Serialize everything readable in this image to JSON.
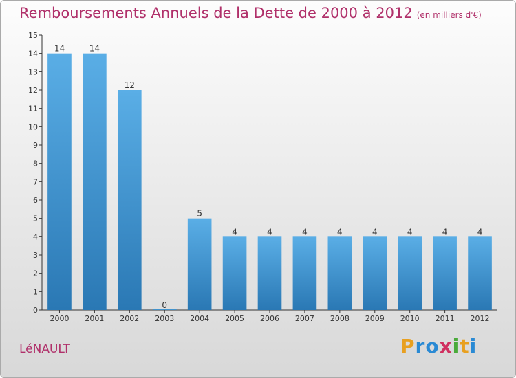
{
  "chart_data": {
    "type": "bar",
    "title": "Remboursements Annuels de la Dette de 2000 à 2012",
    "subtitle": "(en milliers d'€)",
    "categories": [
      "2000",
      "2001",
      "2002",
      "2003",
      "2004",
      "2005",
      "2006",
      "2007",
      "2008",
      "2009",
      "2010",
      "2011",
      "2012"
    ],
    "values": [
      14,
      14,
      12,
      0,
      5,
      4,
      4,
      4,
      4,
      4,
      4,
      4,
      4
    ],
    "ylim": [
      0,
      15
    ],
    "yticks": [
      0,
      1,
      2,
      3,
      4,
      5,
      6,
      7,
      8,
      9,
      10,
      11,
      12,
      13,
      14,
      15
    ],
    "xlabel": "",
    "ylabel": "",
    "grid": false,
    "legend": "none",
    "bar_color_light": "#5aaee6",
    "bar_color_dark": "#2a78b4",
    "data_labels": true
  },
  "footer": {
    "commune": "LéNAULT",
    "brand_letters": [
      "P",
      "r",
      "o",
      "x",
      "i",
      "t",
      "i"
    ],
    "brand_colors": [
      "#e8a020",
      "#2a8ad4",
      "#2a8ad4",
      "#d03060",
      "#4aaa3a",
      "#e8a020",
      "#2a8ad4"
    ]
  },
  "colors": {
    "title": "#b0306a",
    "axis": "#333333"
  }
}
